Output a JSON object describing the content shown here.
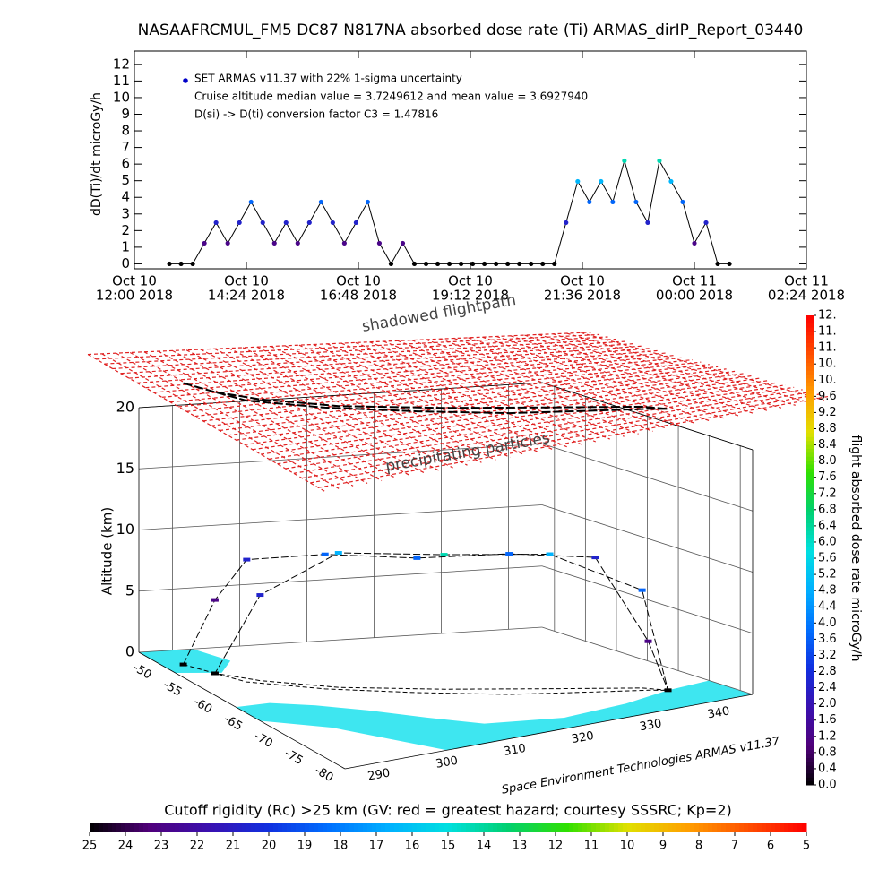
{
  "chart_data": [
    {
      "type": "line",
      "title": "NASAAFRCMUL_FM5 DC87 N817NA absorbed dose rate (Ti) ARMAS_dirIP_Report_03440",
      "ylabel": "dD(Ti)/dt microGy/h",
      "x": [
        "2018-10-10 12:45",
        "2018-10-10 13:00",
        "2018-10-10 13:15",
        "2018-10-10 13:30",
        "2018-10-10 13:45",
        "2018-10-10 14:00",
        "2018-10-10 14:15",
        "2018-10-10 14:30",
        "2018-10-10 14:45",
        "2018-10-10 15:00",
        "2018-10-10 15:15",
        "2018-10-10 15:30",
        "2018-10-10 15:45",
        "2018-10-10 16:00",
        "2018-10-10 16:15",
        "2018-10-10 16:30",
        "2018-10-10 16:45",
        "2018-10-10 17:00",
        "2018-10-10 17:15",
        "2018-10-10 17:30",
        "2018-10-10 17:45",
        "2018-10-10 18:00",
        "2018-10-10 18:15",
        "2018-10-10 18:30",
        "2018-10-10 18:45",
        "2018-10-10 19:00",
        "2018-10-10 19:15",
        "2018-10-10 19:30",
        "2018-10-10 19:45",
        "2018-10-10 20:00",
        "2018-10-10 20:15",
        "2018-10-10 20:30",
        "2018-10-10 20:45",
        "2018-10-10 21:00",
        "2018-10-10 21:15",
        "2018-10-10 21:30",
        "2018-10-10 21:45",
        "2018-10-10 22:00",
        "2018-10-10 22:15",
        "2018-10-10 22:30",
        "2018-10-10 22:45",
        "2018-10-10 23:00",
        "2018-10-10 23:15",
        "2018-10-10 23:30",
        "2018-10-10 23:45",
        "2018-10-11 00:00",
        "2018-10-11 00:15",
        "2018-10-11 00:30",
        "2018-10-11 00:45"
      ],
      "series": [
        {
          "name": "SET ARMAS v11.37 with 22% 1-sigma uncertainty",
          "color": "#0000c8",
          "values": [
            0,
            0,
            0,
            1.24,
            2.48,
            1.24,
            2.48,
            3.72,
            2.48,
            1.24,
            2.48,
            1.24,
            2.48,
            3.72,
            2.48,
            1.24,
            2.48,
            3.72,
            1.24,
            0,
            1.24,
            0,
            0,
            0,
            0,
            0,
            0,
            0,
            0,
            0,
            0,
            0,
            0,
            0,
            2.48,
            4.96,
            3.72,
            4.96,
            3.72,
            6.2,
            3.72,
            2.48,
            6.2,
            4.96,
            3.72,
            1.24,
            2.48,
            0,
            0
          ]
        }
      ],
      "annotations": [
        "Cruise altitude median value = 3.7249612 and mean value = 3.6927940",
        "D(si) -> D(ti) conversion factor C3 = 1.47816"
      ],
      "xlim": [
        "2018-10-10 12:00",
        "2018-10-11 02:24"
      ],
      "xticks": [
        {
          "value": "2018-10-10 12:00",
          "label": [
            "Oct 10",
            "12:00 2018"
          ]
        },
        {
          "value": "2018-10-10 14:24",
          "label": [
            "Oct 10",
            "14:24 2018"
          ]
        },
        {
          "value": "2018-10-10 16:48",
          "label": [
            "Oct 10",
            "16:48 2018"
          ]
        },
        {
          "value": "2018-10-10 19:12",
          "label": [
            "Oct 10",
            "19:12 2018"
          ]
        },
        {
          "value": "2018-10-10 21:36",
          "label": [
            "Oct 10",
            "21:36 2018"
          ]
        },
        {
          "value": "2018-10-11 00:00",
          "label": [
            "Oct 11",
            "00:00 2018"
          ]
        },
        {
          "value": "2018-10-11 02:24",
          "label": [
            "Oct 11",
            "02:24 2018"
          ]
        }
      ],
      "ylim": [
        -0.3,
        12.8
      ],
      "yticks": [
        0,
        1,
        2,
        3,
        4,
        5,
        6,
        7,
        8,
        9,
        10,
        11,
        12
      ]
    },
    {
      "type": "scatter3d",
      "zlabel": "Altitude (km)",
      "annotations": [
        "shadowed flightpath",
        "precipitating particles",
        "Space Environment Technologies ARMAS v11.37"
      ],
      "x": [
        288,
        290,
        292,
        300,
        310,
        320,
        330,
        336,
        338,
        336,
        326,
        314,
        302,
        294,
        290
      ],
      "y": [
        -52,
        -55,
        -58,
        -62,
        -66,
        -70,
        -73,
        -75,
        -76,
        -74,
        -70,
        -66,
        -62,
        -58,
        -55
      ],
      "z": [
        0,
        6,
        10,
        11,
        11,
        11.5,
        11,
        4,
        0,
        8,
        11,
        11,
        11,
        7,
        0
      ],
      "values": [
        0,
        1.2,
        2.5,
        3.7,
        3.7,
        3.7,
        2.5,
        1.2,
        0,
        3.7,
        4.9,
        6.2,
        4.9,
        2.5,
        0
      ],
      "xlim": [
        285,
        345
      ],
      "ylim": [
        -48,
        -82
      ],
      "zlim": [
        0,
        20
      ],
      "xticks": [
        290,
        300,
        310,
        320,
        330,
        340
      ],
      "yticks": [
        -50,
        -55,
        -60,
        -65,
        -70,
        -75,
        -80
      ],
      "zticks": [
        0,
        5,
        10,
        15,
        20
      ],
      "colormap": [
        "#000000",
        "#50007a",
        "#3a10b0",
        "#1030e0",
        "#0070ff",
        "#00b0ff",
        "#00e0e0",
        "#00d070",
        "#30e000",
        "#e0e000",
        "#ffa000",
        "#ff5000",
        "#ff0000"
      ],
      "colorbar": {
        "label": "flight absorbed dose rate microGy/h",
        "clim": [
          0,
          11.6
        ],
        "ticks": [
          {
            "value": 0,
            "label": "0.0"
          },
          {
            "value": 0.4,
            "label": "0.4"
          },
          {
            "value": 0.8,
            "label": "0.8"
          },
          {
            "value": 1.2,
            "label": "1.2"
          },
          {
            "value": 1.6,
            "label": "1.6"
          },
          {
            "value": 2,
            "label": "2.0"
          },
          {
            "value": 2.4,
            "label": "2.4"
          },
          {
            "value": 2.8,
            "label": "2.8"
          },
          {
            "value": 3.2,
            "label": "3.2"
          },
          {
            "value": 3.6,
            "label": "3.6"
          },
          {
            "value": 4,
            "label": "4.0"
          },
          {
            "value": 4.4,
            "label": "4.4"
          },
          {
            "value": 4.8,
            "label": "4.8"
          },
          {
            "value": 5.2,
            "label": "5.2"
          },
          {
            "value": 5.6,
            "label": "5.6"
          },
          {
            "value": 6,
            "label": "6.0"
          },
          {
            "value": 6.4,
            "label": "6.4"
          },
          {
            "value": 6.8,
            "label": "6.8"
          },
          {
            "value": 7.2,
            "label": "7.2"
          },
          {
            "value": 7.6,
            "label": "7.6"
          },
          {
            "value": 8,
            "label": "8.0"
          },
          {
            "value": 8.4,
            "label": "8.4"
          },
          {
            "value": 8.8,
            "label": "8.8"
          },
          {
            "value": 9.2,
            "label": "9.2"
          },
          {
            "value": 9.6,
            "label": "9.6"
          },
          {
            "value": 10,
            "label": "10."
          },
          {
            "value": 10.4,
            "label": "10."
          },
          {
            "value": 10.8,
            "label": "11."
          },
          {
            "value": 11.2,
            "label": "11."
          },
          {
            "value": 11.6,
            "label": "12."
          }
        ]
      },
      "rigidity_colorbar": {
        "label": "Cutoff rigidity (Rc) >25 km (GV: red = greatest hazard; courtesy SSSRC; Kp=2)",
        "clim": [
          25,
          5
        ],
        "ticks": [
          25,
          24,
          23,
          22,
          21,
          20,
          19,
          18,
          17,
          16,
          15,
          14,
          13,
          12,
          11,
          10,
          9,
          8,
          7,
          6,
          5
        ]
      }
    }
  ]
}
